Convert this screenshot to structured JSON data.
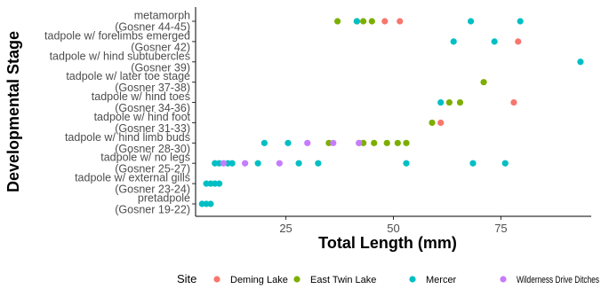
{
  "chart_data": {
    "type": "scatter",
    "title": "",
    "xlabel": "Total Length (mm)",
    "ylabel": "Developmental Stage",
    "xlim": [
      4,
      96
    ],
    "xticks": [
      25,
      50,
      75
    ],
    "grid": false,
    "legend_position": "bottom",
    "legend_title": "Site",
    "categories": [
      "pretadpole\n(Gosner 19-22)",
      "tadpole w/ external gills\n(Gosner 23-24)",
      "tadpole w/ no legs\n(Gosner 25-27)",
      "tadpole w/ hind limb buds\n(Gosner 28-30)",
      "tadpole w/ hind foot\n(Gosner 31-33)",
      "tadpole w/ hind toes\n(Gosner 34-36)",
      "tadpole w/ later toe stage\n(Gosner 37-38)",
      "tadpole w/ hind subtubercles\n(Gosner 39)",
      "tadpole w/ forelimbs emerged\n(Gosner 42)",
      "metamorph\n(Gosner 44-45)"
    ],
    "series": [
      {
        "name": "Deming Lake",
        "color": "#F8766D",
        "points": [
          {
            "x": 78,
            "y": "tadpole w/ hind toes\n(Gosner 34-36)"
          },
          {
            "x": 61,
            "y": "tadpole w/ hind foot\n(Gosner 31-33)"
          },
          {
            "x": 79,
            "y": "tadpole w/ forelimbs emerged\n(Gosner 42)"
          },
          {
            "x": 48,
            "y": "metamorph\n(Gosner 44-45)"
          },
          {
            "x": 51.5,
            "y": "metamorph\n(Gosner 44-45)"
          }
        ]
      },
      {
        "name": "East Twin Lake",
        "color": "#7CAE00",
        "points": [
          {
            "x": 37,
            "y": "metamorph\n(Gosner 44-45)"
          },
          {
            "x": 41.5,
            "y": "metamorph\n(Gosner 44-45)"
          },
          {
            "x": 43,
            "y": "metamorph\n(Gosner 44-45)"
          },
          {
            "x": 45,
            "y": "metamorph\n(Gosner 44-45)"
          },
          {
            "x": 71,
            "y": "tadpole w/ later toe stage\n(Gosner 37-38)"
          },
          {
            "x": 63,
            "y": "tadpole w/ hind toes\n(Gosner 34-36)"
          },
          {
            "x": 65.5,
            "y": "tadpole w/ hind toes\n(Gosner 34-36)"
          },
          {
            "x": 59,
            "y": "tadpole w/ hind foot\n(Gosner 31-33)"
          },
          {
            "x": 35,
            "y": "tadpole w/ hind limb buds\n(Gosner 28-30)"
          },
          {
            "x": 42,
            "y": "tadpole w/ hind limb buds\n(Gosner 28-30)"
          },
          {
            "x": 43,
            "y": "tadpole w/ hind limb buds\n(Gosner 28-30)"
          },
          {
            "x": 45.5,
            "y": "tadpole w/ hind limb buds\n(Gosner 28-30)"
          },
          {
            "x": 48.5,
            "y": "tadpole w/ hind limb buds\n(Gosner 28-30)"
          },
          {
            "x": 51,
            "y": "tadpole w/ hind limb buds\n(Gosner 28-30)"
          },
          {
            "x": 53,
            "y": "tadpole w/ hind limb buds\n(Gosner 28-30)"
          }
        ]
      },
      {
        "name": "Mercer",
        "color": "#00BFC4",
        "points": [
          {
            "x": 41.5,
            "y": "metamorph\n(Gosner 44-45)"
          },
          {
            "x": 68,
            "y": "metamorph\n(Gosner 44-45)"
          },
          {
            "x": 79.5,
            "y": "metamorph\n(Gosner 44-45)"
          },
          {
            "x": 64,
            "y": "tadpole w/ forelimbs emerged\n(Gosner 42)"
          },
          {
            "x": 73.5,
            "y": "tadpole w/ forelimbs emerged\n(Gosner 42)"
          },
          {
            "x": 93.5,
            "y": "tadpole w/ hind subtubercles\n(Gosner 39)"
          },
          {
            "x": 61,
            "y": "tadpole w/ hind toes\n(Gosner 34-36)"
          },
          {
            "x": 20,
            "y": "tadpole w/ hind limb buds\n(Gosner 28-30)"
          },
          {
            "x": 25.5,
            "y": "tadpole w/ hind limb buds\n(Gosner 28-30)"
          },
          {
            "x": 8.5,
            "y": "tadpole w/ no legs\n(Gosner 25-27)"
          },
          {
            "x": 9.5,
            "y": "tadpole w/ no legs\n(Gosner 25-27)"
          },
          {
            "x": 11.5,
            "y": "tadpole w/ no legs\n(Gosner 25-27)"
          },
          {
            "x": 12.5,
            "y": "tadpole w/ no legs\n(Gosner 25-27)"
          },
          {
            "x": 18.5,
            "y": "tadpole w/ no legs\n(Gosner 25-27)"
          },
          {
            "x": 28,
            "y": "tadpole w/ no legs\n(Gosner 25-27)"
          },
          {
            "x": 32.5,
            "y": "tadpole w/ no legs\n(Gosner 25-27)"
          },
          {
            "x": 53,
            "y": "tadpole w/ no legs\n(Gosner 25-27)"
          },
          {
            "x": 68.5,
            "y": "tadpole w/ no legs\n(Gosner 25-27)"
          },
          {
            "x": 76,
            "y": "tadpole w/ no legs\n(Gosner 25-27)"
          },
          {
            "x": 6.5,
            "y": "tadpole w/ external gills\n(Gosner 23-24)"
          },
          {
            "x": 7.5,
            "y": "tadpole w/ external gills\n(Gosner 23-24)"
          },
          {
            "x": 8.5,
            "y": "tadpole w/ external gills\n(Gosner 23-24)"
          },
          {
            "x": 9.5,
            "y": "tadpole w/ external gills\n(Gosner 23-24)"
          },
          {
            "x": 5.5,
            "y": "pretadpole\n(Gosner 19-22)"
          },
          {
            "x": 6.5,
            "y": "pretadpole\n(Gosner 19-22)"
          },
          {
            "x": 7.5,
            "y": "pretadpole\n(Gosner 19-22)"
          }
        ]
      },
      {
        "name": "Wilderness Drive Ditches",
        "color": "#C77CFF",
        "points": [
          {
            "x": 30,
            "y": "tadpole w/ hind limb buds\n(Gosner 28-30)"
          },
          {
            "x": 36,
            "y": "tadpole w/ hind limb buds\n(Gosner 28-30)"
          },
          {
            "x": 42,
            "y": "tadpole w/ hind limb buds\n(Gosner 28-30)"
          },
          {
            "x": 10.5,
            "y": "tadpole w/ no legs\n(Gosner 25-27)"
          },
          {
            "x": 15.5,
            "y": "tadpole w/ no legs\n(Gosner 25-27)"
          },
          {
            "x": 23.5,
            "y": "tadpole w/ no legs\n(Gosner 25-27)"
          }
        ]
      }
    ]
  }
}
